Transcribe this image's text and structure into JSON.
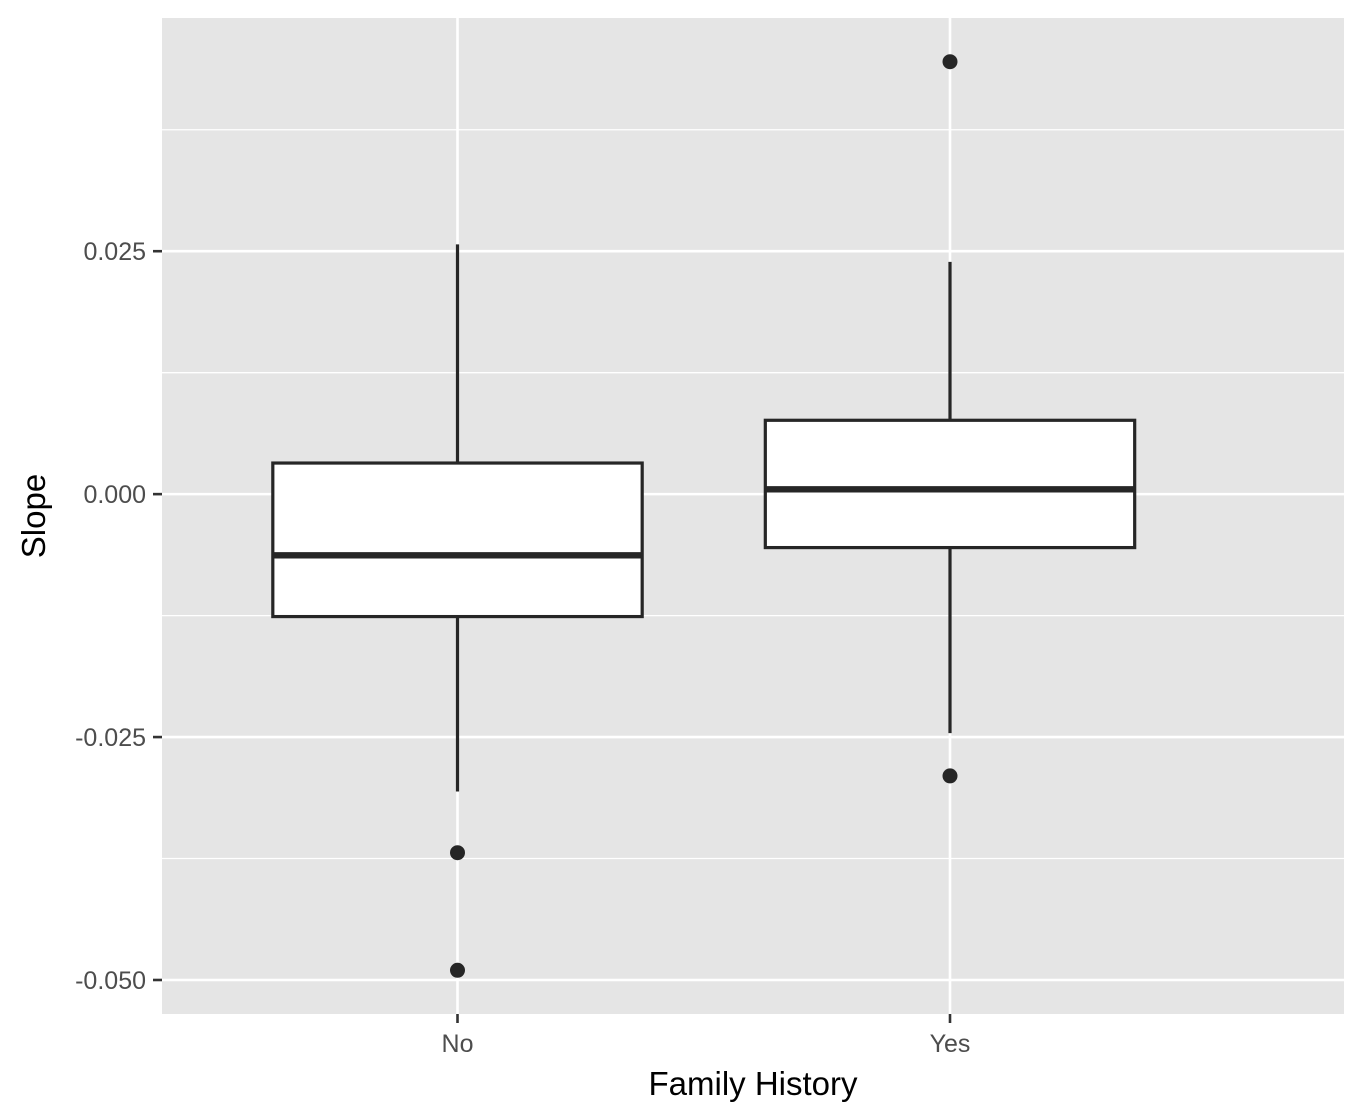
{
  "chart_data": {
    "type": "box",
    "xlabel": "Family History",
    "ylabel": "Slope",
    "categories": [
      "No",
      "Yes"
    ],
    "ylim": [
      -0.0535,
      0.049
    ],
    "yticks": [
      -0.05,
      -0.025,
      0.0,
      0.025
    ],
    "ytick_labels": [
      "-0.050",
      "-0.025",
      "0.000",
      "0.025"
    ],
    "grid": true,
    "legend": "none",
    "boxes": [
      {
        "category": "No",
        "whisker_low": -0.0306,
        "q1": -0.0126,
        "median": -0.0063,
        "q3": 0.0032,
        "whisker_high": 0.0257,
        "outliers": [
          -0.0369,
          -0.049
        ]
      },
      {
        "category": "Yes",
        "whisker_low": -0.0246,
        "q1": -0.0055,
        "median": 0.0005,
        "q3": 0.0076,
        "whisker_high": 0.0239,
        "outliers": [
          0.0445,
          -0.029
        ]
      }
    ],
    "colors": {
      "panel_background": "#e5e5e5",
      "grid": "#ffffff",
      "box_fill": "#ffffff",
      "box_stroke": "#262626",
      "tick": "#333333"
    }
  }
}
